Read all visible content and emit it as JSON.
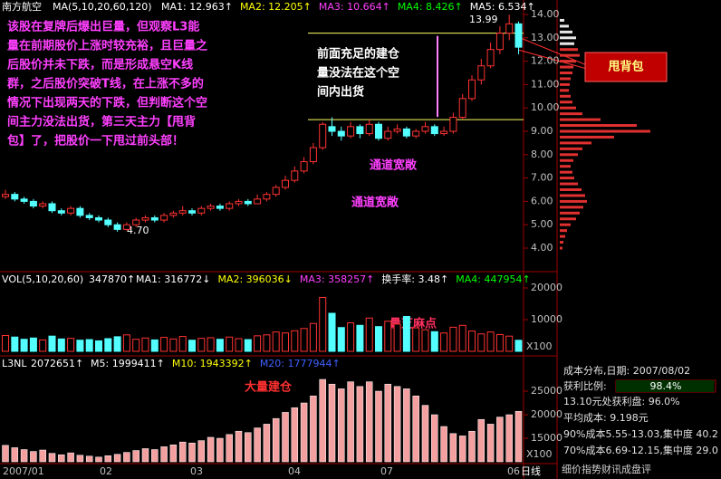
{
  "header": {
    "stock": "南方航空",
    "ma_label": "MA(5,10,20,60,120)",
    "ma": [
      {
        "text": "MA1: 12.963↑",
        "color": "#ffffff"
      },
      {
        "text": "MA2: 12.205↑",
        "color": "#ffff00"
      },
      {
        "text": "MA3: 10.664↑",
        "color": "#ff40ff"
      },
      {
        "text": "MA4: 8.426↑",
        "color": "#00ff00"
      },
      {
        "text": "MA5: 6.534↑",
        "color": "#ffffff"
      }
    ]
  },
  "volume_header": {
    "label": "VOL(5,10,20,60)",
    "value": "347870↑",
    "items": [
      {
        "text": "MA1: 316772↓",
        "color": "#ffffff"
      },
      {
        "text": "MA2: 396036↓",
        "color": "#ffff00"
      },
      {
        "text": "MA3: 358257↑",
        "color": "#ff40ff"
      },
      {
        "text": "换手率: 3.48↑",
        "color": "#ffffff"
      },
      {
        "text": "MA4: 447954↑",
        "color": "#00ff00"
      }
    ]
  },
  "l3_header": {
    "label": "L3NL",
    "value": "2072651↑",
    "items": [
      {
        "text": "M5: 1999411↑",
        "color": "#ffffff"
      },
      {
        "text": "M10: 1943392↑",
        "color": "#ffff00"
      },
      {
        "text": "M20: 1777944↑",
        "color": "#4060ff"
      }
    ]
  },
  "annotations": {
    "main": [
      "该股在复牌后爆出巨量，但观察L3能",
      "量在前期股价上涨时较充裕，且巨量之",
      "后股价并未下跌，而是形成悬空K线",
      "群，之后股价突破T线，在上涨不多的",
      "情况下出现两天的下跌，但判断这个空",
      "间主力没法出货，第三天主力【甩背",
      "包】了，把股价一下甩过前头部！"
    ],
    "box": [
      "前面充足的建仓",
      "量没法在这个空",
      "间内出货"
    ],
    "channel1": "通道宽敞",
    "channel2": "通道宽敞",
    "dots": "量芝麻点",
    "build": "大量建仓",
    "callout": "甩背包",
    "low": "4.70",
    "high": "13.99"
  },
  "dates": [
    "2007/01",
    "02",
    "03",
    "04",
    "07",
    "06"
  ],
  "period": "日线",
  "scale_label": "X100",
  "scale_label2": "X100",
  "info": {
    "lines": [
      "成本分布,日期: 2007/08/02",
      "13.10元处获利盘: 96.0%",
      "平均成本: 9.198元",
      "90%成本5.55-13.03,集中度 40.2",
      "70%成本6.69-12.15,集中度 29.0"
    ],
    "profit_label": "获利比例:",
    "profit": "98.4%",
    "profit_value": 98.4,
    "footer": "细价指势财讯成盘评"
  },
  "chart_data": {
    "type": "candlestick",
    "up_color": "#ff3232",
    "down_color": "#54ffff",
    "ylim": [
      3.5,
      14.3
    ],
    "yticks": [
      {
        "value": 4,
        "label": "4.00"
      },
      {
        "value": 5,
        "label": "5.00"
      },
      {
        "value": 6,
        "label": "6.00"
      },
      {
        "value": 7,
        "label": "7.00"
      },
      {
        "value": 8,
        "label": "8.00"
      },
      {
        "value": 9,
        "label": "9.00"
      },
      {
        "value": 10,
        "label": "10.00"
      },
      {
        "value": 11,
        "label": "11.00"
      },
      {
        "value": 12,
        "label": "12.00"
      },
      {
        "value": 13,
        "label": "13.00"
      },
      {
        "value": 14,
        "label": "14.00"
      }
    ],
    "box_levels": [
      13.2,
      9.5
    ],
    "candles": [
      [
        6.2,
        6.3,
        6.5,
        6.1
      ],
      [
        6.3,
        6.1,
        6.4,
        6.0
      ],
      [
        6.1,
        6.0,
        6.2,
        5.9
      ],
      [
        6.0,
        5.8,
        6.1,
        5.7
      ],
      [
        5.8,
        5.9,
        6.0,
        5.7
      ],
      [
        5.9,
        5.6,
        6.0,
        5.5
      ],
      [
        5.6,
        5.5,
        5.7,
        5.4
      ],
      [
        5.5,
        5.7,
        5.8,
        5.4
      ],
      [
        5.7,
        5.4,
        5.8,
        5.3
      ],
      [
        5.4,
        5.3,
        5.5,
        5.2
      ],
      [
        5.3,
        5.2,
        5.4,
        5.1
      ],
      [
        5.2,
        5.0,
        5.3,
        4.9
      ],
      [
        5.0,
        4.8,
        5.1,
        4.7
      ],
      [
        4.8,
        5.0,
        5.1,
        4.75
      ],
      [
        5.0,
        5.2,
        5.3,
        4.9
      ],
      [
        5.2,
        5.3,
        5.4,
        5.1
      ],
      [
        5.3,
        5.2,
        5.4,
        5.1
      ],
      [
        5.2,
        5.4,
        5.5,
        5.1
      ],
      [
        5.4,
        5.5,
        5.6,
        5.3
      ],
      [
        5.5,
        5.6,
        5.8,
        5.4
      ],
      [
        5.6,
        5.5,
        5.7,
        5.4
      ],
      [
        5.5,
        5.7,
        5.8,
        5.4
      ],
      [
        5.7,
        5.8,
        5.9,
        5.6
      ],
      [
        5.8,
        5.7,
        5.9,
        5.6
      ],
      [
        5.7,
        5.9,
        6.0,
        5.6
      ],
      [
        5.9,
        6.0,
        6.1,
        5.8
      ],
      [
        6.0,
        5.9,
        6.1,
        5.8
      ],
      [
        5.9,
        6.1,
        6.3,
        5.9
      ],
      [
        6.1,
        6.3,
        6.4,
        6.0
      ],
      [
        6.3,
        6.6,
        6.7,
        6.2
      ],
      [
        6.6,
        6.9,
        7.1,
        6.5
      ],
      [
        6.9,
        7.3,
        7.5,
        6.8
      ],
      [
        7.3,
        7.7,
        7.9,
        7.2
      ],
      [
        7.7,
        8.3,
        8.5,
        7.6
      ],
      [
        8.3,
        9.3,
        9.4,
        8.2
      ],
      [
        9.2,
        9.0,
        9.6,
        8.8
      ],
      [
        9.0,
        8.8,
        9.2,
        8.6
      ],
      [
        8.8,
        9.2,
        9.4,
        8.7
      ],
      [
        9.2,
        8.9,
        9.3,
        8.7
      ],
      [
        8.9,
        9.3,
        9.5,
        8.8
      ],
      [
        9.3,
        8.7,
        9.4,
        8.6
      ],
      [
        8.7,
        9.0,
        9.2,
        8.6
      ],
      [
        9.0,
        9.1,
        9.3,
        8.9
      ],
      [
        9.1,
        8.8,
        9.2,
        8.7
      ],
      [
        8.8,
        9.0,
        9.1,
        8.7
      ],
      [
        9.0,
        9.2,
        9.4,
        8.9
      ],
      [
        9.2,
        8.9,
        9.3,
        8.8
      ],
      [
        8.9,
        9.0,
        9.2,
        8.8
      ],
      [
        9.0,
        9.6,
        9.8,
        8.9
      ],
      [
        9.6,
        10.4,
        10.6,
        9.5
      ],
      [
        10.4,
        11.2,
        11.4,
        10.3
      ],
      [
        11.2,
        11.8,
        12.1,
        11.0
      ],
      [
        11.8,
        12.5,
        12.8,
        11.7
      ],
      [
        12.5,
        13.2,
        13.5,
        12.3
      ],
      [
        13.2,
        13.6,
        13.99,
        12.9
      ],
      [
        13.6,
        12.6,
        13.7,
        12.3
      ]
    ],
    "volume": {
      "ylim": [
        0,
        22000
      ],
      "yticks": [
        10000,
        20000
      ],
      "values": [
        5000,
        4500,
        3800,
        4200,
        3600,
        4800,
        3900,
        4100,
        3500,
        3700,
        3300,
        4000,
        4600,
        5200,
        3800,
        4200,
        3600,
        4400,
        3900,
        4700,
        3500,
        4100,
        4300,
        3800,
        4500,
        4000,
        3700,
        4900,
        5200,
        6100,
        5800,
        6500,
        7200,
        8800,
        17000,
        12000,
        7500,
        9000,
        8200,
        10500,
        7800,
        9500,
        8600,
        11000,
        7400,
        6800,
        6200,
        5800,
        7600,
        8200,
        6400,
        5500,
        6100,
        5300,
        4800,
        3479
      ]
    },
    "l3nl": {
      "ylim": [
        10000,
        30000
      ],
      "yticks": [
        15000,
        20000,
        25000
      ],
      "color": "#f4a0a0",
      "values": [
        13500,
        13000,
        12600,
        12200,
        12500,
        11800,
        11500,
        11900,
        11400,
        11200,
        11000,
        11300,
        11600,
        12000,
        12400,
        12800,
        12600,
        13200,
        13600,
        14200,
        14000,
        14500,
        15200,
        15000,
        15800,
        16500,
        16200,
        17200,
        18000,
        19200,
        20500,
        21500,
        22500,
        24000,
        27500,
        26500,
        25500,
        27000,
        26000,
        27000,
        25000,
        26500,
        26000,
        25500,
        24000,
        22000,
        20000,
        17500,
        16000,
        15500,
        16500,
        19000,
        18000,
        19500,
        20000,
        20727
      ]
    },
    "chips": {
      "xlim": [
        0,
        150
      ],
      "profit_color": "#e03030",
      "loss_color": "#e8e8e8",
      "prices": [
        4.0,
        4.25,
        4.5,
        4.75,
        5.0,
        5.25,
        5.5,
        5.75,
        6.0,
        6.25,
        6.5,
        6.75,
        7.0,
        7.25,
        7.5,
        7.75,
        8.0,
        8.25,
        8.5,
        8.75,
        9.0,
        9.25,
        9.5,
        9.75,
        10.0,
        10.25,
        10.5,
        10.75,
        11.0,
        11.25,
        11.5,
        11.75,
        12.0,
        12.25,
        12.5,
        12.75,
        13.0,
        13.25,
        13.5,
        13.75
      ],
      "values": [
        3,
        4,
        6,
        8,
        12,
        18,
        22,
        26,
        30,
        28,
        24,
        20,
        16,
        14,
        12,
        15,
        20,
        25,
        35,
        60,
        100,
        85,
        45,
        25,
        18,
        14,
        12,
        10,
        11,
        12,
        14,
        15,
        18,
        22,
        20,
        16,
        18,
        14,
        10,
        5
      ]
    }
  }
}
